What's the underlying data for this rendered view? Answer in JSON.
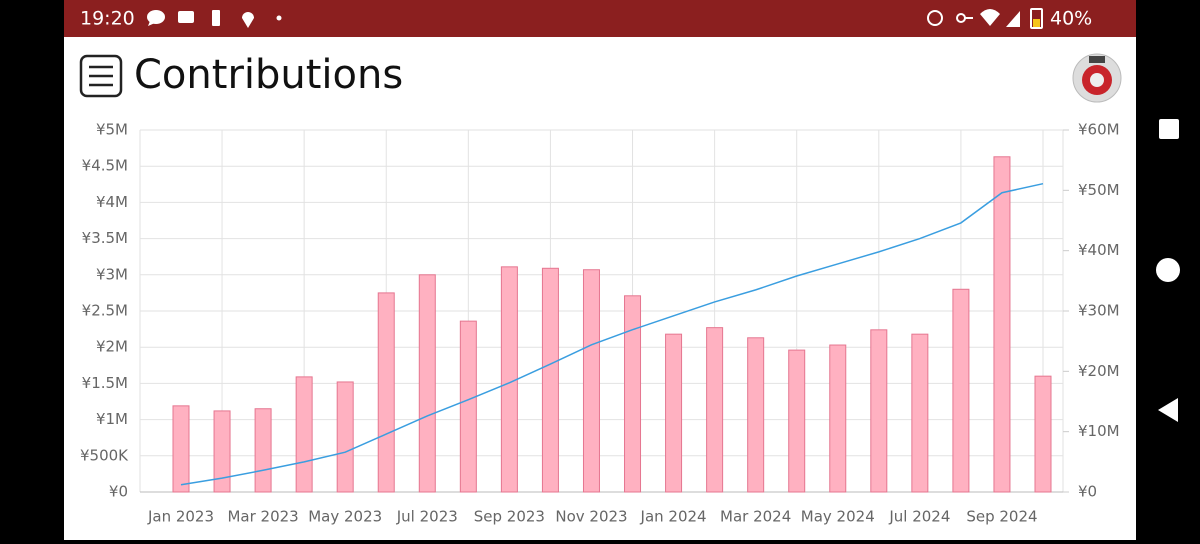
{
  "status_bar": {
    "time": "19:20",
    "battery": "40%"
  },
  "header": {
    "title": "Contributions"
  },
  "chart_data": {
    "type": "bar",
    "categories": [
      "Jan 2023",
      null,
      "Mar 2023",
      null,
      "May 2023",
      null,
      "Jul 2023",
      null,
      "Sep 2023",
      null,
      "Nov 2023",
      null,
      "Jan 2024",
      null,
      "Mar 2024",
      null,
      "May 2024",
      null,
      "Jul 2024",
      null,
      "Sep 2024",
      null
    ],
    "series": [
      {
        "type": "bar",
        "color": "#ffb1c1",
        "edge_color": "#e57690",
        "values": [
          1190000,
          1120000,
          1150000,
          1590000,
          1520000,
          2750000,
          3000000,
          2360000,
          3110000,
          3090000,
          3070000,
          2710000,
          2180000,
          2270000,
          2130000,
          1960000,
          2030000,
          2240000,
          2180000,
          2800000,
          4630000,
          1600000
        ]
      },
      {
        "type": "line",
        "color": "#3a9ee0",
        "axis": "y2",
        "values": [
          1200000,
          2300000,
          3600000,
          5000000,
          6600000,
          9600000,
          12600000,
          15300000,
          18100000,
          21200000,
          24400000,
          26900000,
          29200000,
          31500000,
          33500000,
          35800000,
          37800000,
          39800000,
          42000000,
          44600000,
          49600000,
          51100000
        ]
      }
    ],
    "ylim": [
      0,
      5000000
    ],
    "yticks": [
      {
        "value": 0,
        "label": "¥0"
      },
      {
        "value": 500000,
        "label": "¥500K"
      },
      {
        "value": 1000000,
        "label": "¥1M"
      },
      {
        "value": 1500000,
        "label": "¥1.5M"
      },
      {
        "value": 2000000,
        "label": "¥2M"
      },
      {
        "value": 2500000,
        "label": "¥2.5M"
      },
      {
        "value": 3000000,
        "label": "¥3M"
      },
      {
        "value": 3500000,
        "label": "¥3.5M"
      },
      {
        "value": 4000000,
        "label": "¥4M"
      },
      {
        "value": 4500000,
        "label": "¥4.5M"
      },
      {
        "value": 5000000,
        "label": "¥5M"
      }
    ],
    "y2lim": [
      0,
      60000000
    ],
    "y2ticks": [
      {
        "value": 0,
        "label": "¥0"
      },
      {
        "value": 10000000,
        "label": "¥10M"
      },
      {
        "value": 20000000,
        "label": "¥20M"
      },
      {
        "value": 30000000,
        "label": "¥30M"
      },
      {
        "value": 40000000,
        "label": "¥40M"
      },
      {
        "value": 50000000,
        "label": "¥50M"
      },
      {
        "value": 60000000,
        "label": "¥60M"
      }
    ],
    "grid": true
  }
}
